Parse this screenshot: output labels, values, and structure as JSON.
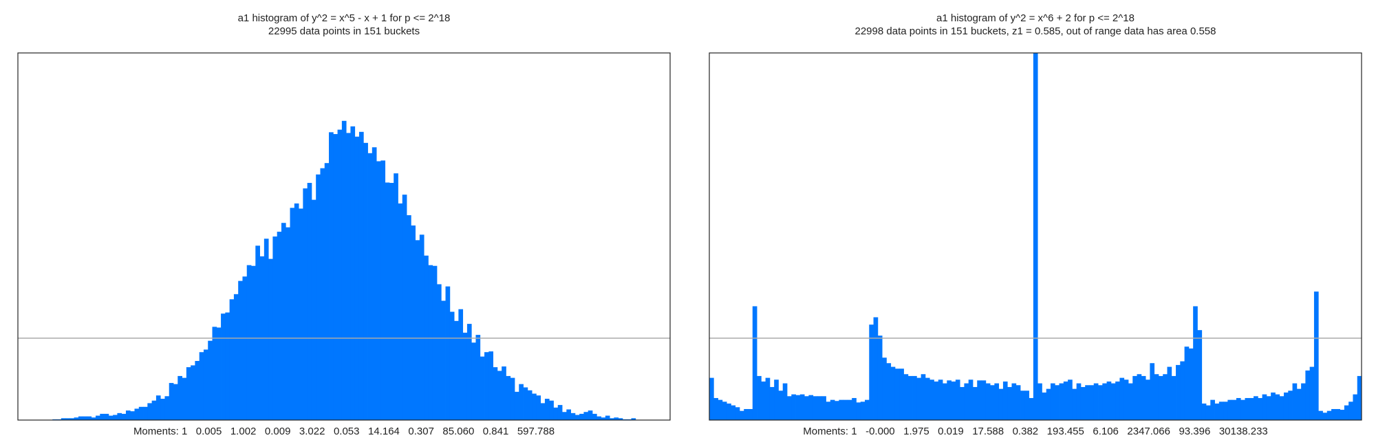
{
  "chart_data": [
    {
      "type": "histogram",
      "title": "a1 histogram of y^2 = x^5 - x + 1 for p <= 2^18",
      "subtitle": "22995 data points in 151 buckets",
      "footer": "Moments: 1   0.005   1.002   0.009   3.022   0.053   14.164   0.307   85.060   0.841   597.788",
      "color": "#0077ff",
      "ylim": [
        0,
        1
      ],
      "reference_line": 0.223,
      "values": [
        0,
        0,
        0,
        0,
        0,
        0,
        0,
        0,
        0.002,
        0.002,
        0.005,
        0.005,
        0.005,
        0.007,
        0.01,
        0.01,
        0.01,
        0.007,
        0.012,
        0.017,
        0.017,
        0.012,
        0.014,
        0.019,
        0.017,
        0.026,
        0.024,
        0.031,
        0.036,
        0.036,
        0.046,
        0.053,
        0.067,
        0.058,
        0.065,
        0.101,
        0.098,
        0.12,
        0.115,
        0.144,
        0.149,
        0.161,
        0.185,
        0.192,
        0.216,
        0.254,
        0.252,
        0.29,
        0.293,
        0.329,
        0.343,
        0.379,
        0.391,
        0.422,
        0.42,
        0.475,
        0.446,
        0.494,
        0.439,
        0.5,
        0.513,
        0.537,
        0.525,
        0.578,
        0.59,
        0.576,
        0.631,
        0.646,
        0.6,
        0.669,
        0.686,
        0.7,
        0.784,
        0.779,
        0.791,
        0.815,
        0.782,
        0.8,
        0.772,
        0.785,
        0.755,
        0.727,
        0.743,
        0.705,
        0.707,
        0.647,
        0.646,
        0.672,
        0.59,
        0.614,
        0.558,
        0.53,
        0.49,
        0.505,
        0.448,
        0.422,
        0.42,
        0.37,
        0.325,
        0.364,
        0.295,
        0.27,
        0.302,
        0.238,
        0.262,
        0.211,
        0.232,
        0.173,
        0.185,
        0.187,
        0.144,
        0.134,
        0.146,
        0.12,
        0.115,
        0.077,
        0.098,
        0.089,
        0.081,
        0.072,
        0.067,
        0.046,
        0.058,
        0.053,
        0.034,
        0.041,
        0.022,
        0.029,
        0.019,
        0.014,
        0.017,
        0.022,
        0.026,
        0.017,
        0.01,
        0.007,
        0.012,
        0.005,
        0.007,
        0.005,
        0.002,
        0.002,
        0.005,
        0,
        0,
        0,
        0,
        0,
        0,
        0,
        0
      ]
    },
    {
      "type": "histogram",
      "title": "a1 histogram of y^2 = x^6 + 2 for p <= 2^18",
      "subtitle": "22998 data points in 151 buckets, z1 = 0.585, out of range data has area 0.558",
      "footer": "Moments: 1   -0.000   1.975   0.019   17.588   0.382   193.455   6.106   2347.066   93.396   30138.233",
      "color": "#0077ff",
      "ylim": [
        0,
        1
      ],
      "reference_line": 0.223,
      "values": [
        0.115,
        0.06,
        0.055,
        0.05,
        0.045,
        0.04,
        0.035,
        0.025,
        0.03,
        0.03,
        0.31,
        0.12,
        0.105,
        0.115,
        0.09,
        0.11,
        0.08,
        0.1,
        0.065,
        0.07,
        0.068,
        0.07,
        0.065,
        0.068,
        0.065,
        0.065,
        0.065,
        0.05,
        0.055,
        0.052,
        0.055,
        0.055,
        0.055,
        0.06,
        0.048,
        0.05,
        0.055,
        0.26,
        0.28,
        0.23,
        0.17,
        0.155,
        0.145,
        0.14,
        0.14,
        0.125,
        0.12,
        0.12,
        0.115,
        0.125,
        0.115,
        0.11,
        0.105,
        0.11,
        0.1,
        0.108,
        0.105,
        0.11,
        0.09,
        0.1,
        0.11,
        0.09,
        0.108,
        0.108,
        0.1,
        0.095,
        0.1,
        0.085,
        0.105,
        0.09,
        0.1,
        0.095,
        0.08,
        0.08,
        0.06,
        1.0,
        0.1,
        0.075,
        0.085,
        0.1,
        0.095,
        0.1,
        0.105,
        0.11,
        0.085,
        0.1,
        0.09,
        0.095,
        0.095,
        0.1,
        0.095,
        0.1,
        0.105,
        0.1,
        0.105,
        0.115,
        0.11,
        0.1,
        0.12,
        0.125,
        0.12,
        0.11,
        0.155,
        0.125,
        0.12,
        0.125,
        0.145,
        0.12,
        0.15,
        0.16,
        0.2,
        0.195,
        0.31,
        0.245,
        0.045,
        0.04,
        0.055,
        0.045,
        0.05,
        0.05,
        0.055,
        0.055,
        0.06,
        0.055,
        0.06,
        0.06,
        0.065,
        0.06,
        0.07,
        0.065,
        0.075,
        0.07,
        0.065,
        0.075,
        0.08,
        0.1,
        0.085,
        0.1,
        0.135,
        0.145,
        0.35,
        0.025,
        0.02,
        0.025,
        0.03,
        0.03,
        0.028,
        0.04,
        0.05,
        0.07,
        0.12
      ]
    }
  ]
}
